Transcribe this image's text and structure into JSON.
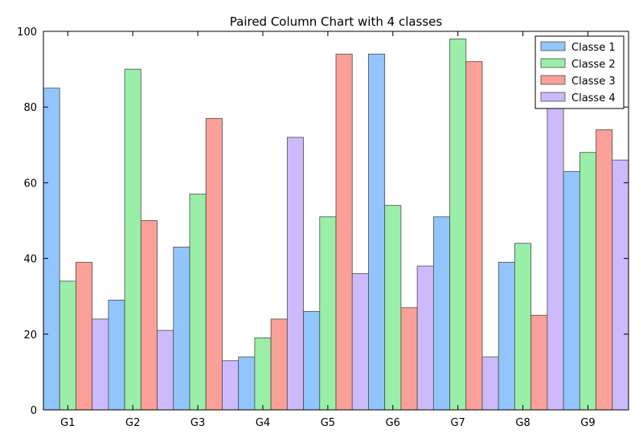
{
  "chart_data": {
    "type": "bar",
    "title": "Paired Column Chart with 4 classes",
    "xlabel": "",
    "ylabel": "",
    "ylim": [
      0,
      100
    ],
    "yticks": [
      0,
      20,
      40,
      60,
      80,
      100
    ],
    "grid": false,
    "legend_position": "top-right",
    "categories": [
      "G1",
      "G2",
      "G3",
      "G4",
      "G5",
      "G6",
      "G7",
      "G8",
      "G9"
    ],
    "series": [
      {
        "name": "Classe 1",
        "color": "#92c5fb",
        "values": [
          85,
          29,
          43,
          14,
          26,
          94,
          51,
          39,
          63
        ]
      },
      {
        "name": "Classe 2",
        "color": "#99eea8",
        "values": [
          34,
          90,
          57,
          19,
          51,
          54,
          98,
          44,
          68
        ]
      },
      {
        "name": "Classe 3",
        "color": "#fba098",
        "values": [
          39,
          50,
          77,
          24,
          94,
          27,
          92,
          25,
          74
        ]
      },
      {
        "name": "Classe 4",
        "color": "#cdbafb",
        "values": [
          24,
          21,
          13,
          72,
          36,
          38,
          14,
          84,
          66
        ]
      }
    ]
  }
}
